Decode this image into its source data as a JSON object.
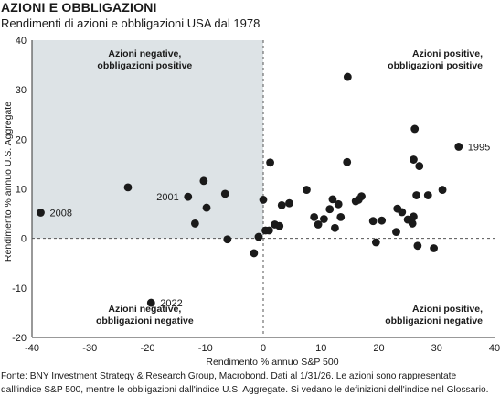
{
  "header": {
    "title": "AZIONI E OBBLIGAZIONI",
    "subtitle": "Rendimenti di azioni e obbligazioni USA dal 1978"
  },
  "footer": {
    "source": "Fonte: BNY Investment Strategy & Research Group, Macrobond. Dati al 1/31/26. Le azioni sono rappresentate dall'indice S&P 500, mentre le obbligazioni dall'indice U.S. Aggregate. Si vedano le definizioni dell'indice nel Glossario."
  },
  "colors": {
    "point": "#1a1a1a",
    "shaded_quadrant": "#dde3e6",
    "axis_line": "#333333",
    "zero_line": "#555555"
  },
  "chart_data": {
    "type": "scatter",
    "title": "AZIONI E OBBLIGAZIONI",
    "subtitle": "Rendimenti di azioni e obbligazioni USA dal 1978",
    "xlabel": "Rendimento % annuo S&P 500",
    "ylabel": "Rendimento % annuo U.S. Aggregate",
    "xlim": [
      -40,
      40
    ],
    "ylim": [
      -20,
      40
    ],
    "xticks": [
      "-40",
      "-30",
      "-20",
      "-10",
      "0",
      "10",
      "20",
      "30",
      "40"
    ],
    "yticks": [
      "40",
      "30",
      "20",
      "10",
      "0",
      "-10",
      "-20"
    ],
    "shaded_quadrant": "top-left",
    "grid": false,
    "quadrant_labels": [
      {
        "id": "top-left",
        "lines": [
          "Azioni negative,",
          "obbligazioni positive"
        ]
      },
      {
        "id": "top-right",
        "lines": [
          "Azioni positive,",
          "obbligazioni positive"
        ]
      },
      {
        "id": "bottom-left",
        "lines": [
          "Azioni negative,",
          "obbligazioni negative"
        ]
      },
      {
        "id": "bottom-right",
        "lines": [
          "Azioni positive,",
          "obbligazioni negative"
        ]
      }
    ],
    "labeled_points": [
      {
        "label": "2008",
        "x": -38.5,
        "y": 5.2
      },
      {
        "label": "2001",
        "x": -13.0,
        "y": 8.4
      },
      {
        "label": "2022",
        "x": -19.4,
        "y": -13.0
      },
      {
        "label": "1995",
        "x": 33.8,
        "y": 18.5
      }
    ],
    "points": [
      {
        "x": -38.5,
        "y": 5.2
      },
      {
        "x": -23.4,
        "y": 10.3
      },
      {
        "x": -19.4,
        "y": -13.0
      },
      {
        "x": -13.0,
        "y": 8.4
      },
      {
        "x": -11.8,
        "y": 3.0
      },
      {
        "x": -10.3,
        "y": 11.6
      },
      {
        "x": -9.8,
        "y": 6.2
      },
      {
        "x": -6.6,
        "y": 9.0
      },
      {
        "x": -6.2,
        "y": -0.2
      },
      {
        "x": -1.6,
        "y": -3.0
      },
      {
        "x": -0.8,
        "y": 0.3
      },
      {
        "x": 0.0,
        "y": 7.8
      },
      {
        "x": 0.4,
        "y": 1.6
      },
      {
        "x": 1.0,
        "y": 1.6
      },
      {
        "x": 1.2,
        "y": 15.3
      },
      {
        "x": 2.0,
        "y": 2.8
      },
      {
        "x": 2.8,
        "y": 2.5
      },
      {
        "x": 3.2,
        "y": 6.7
      },
      {
        "x": 4.5,
        "y": 7.1
      },
      {
        "x": 7.5,
        "y": 9.8
      },
      {
        "x": 8.8,
        "y": 4.3
      },
      {
        "x": 9.5,
        "y": 2.8
      },
      {
        "x": 10.5,
        "y": 3.9
      },
      {
        "x": 11.5,
        "y": 5.9
      },
      {
        "x": 12.0,
        "y": 7.9
      },
      {
        "x": 12.4,
        "y": 2.1
      },
      {
        "x": 13.0,
        "y": 6.9
      },
      {
        "x": 13.4,
        "y": 4.3
      },
      {
        "x": 14.5,
        "y": 15.4
      },
      {
        "x": 14.6,
        "y": 32.6
      },
      {
        "x": 16.0,
        "y": 7.5
      },
      {
        "x": 16.5,
        "y": 7.8
      },
      {
        "x": 17.0,
        "y": 8.5
      },
      {
        "x": 19.0,
        "y": 3.5
      },
      {
        "x": 19.5,
        "y": -0.8
      },
      {
        "x": 20.5,
        "y": 3.6
      },
      {
        "x": 23.0,
        "y": 1.3
      },
      {
        "x": 23.2,
        "y": 6.0
      },
      {
        "x": 24.0,
        "y": 5.3
      },
      {
        "x": 25.0,
        "y": 3.8
      },
      {
        "x": 25.8,
        "y": 3.0
      },
      {
        "x": 26.0,
        "y": 4.4
      },
      {
        "x": 26.0,
        "y": 15.9
      },
      {
        "x": 26.2,
        "y": 22.1
      },
      {
        "x": 26.5,
        "y": 8.7
      },
      {
        "x": 26.7,
        "y": -1.5
      },
      {
        "x": 27.0,
        "y": 14.6
      },
      {
        "x": 28.5,
        "y": 8.7
      },
      {
        "x": 29.5,
        "y": -2.0
      },
      {
        "x": 31.0,
        "y": 9.8
      },
      {
        "x": 33.8,
        "y": 18.5
      }
    ]
  }
}
